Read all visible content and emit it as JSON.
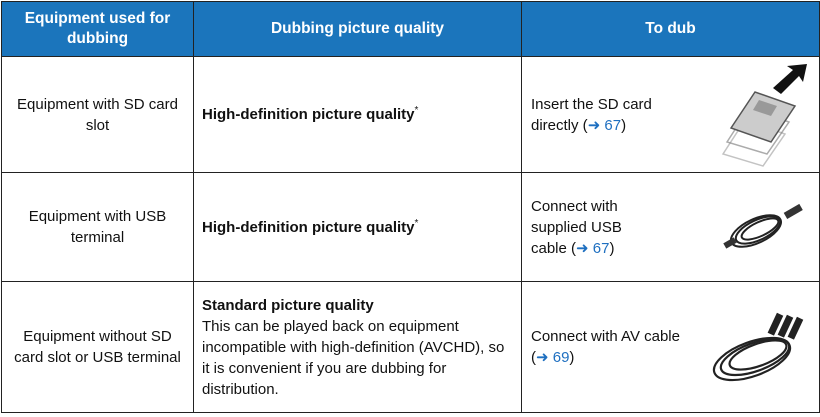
{
  "table": {
    "header": [
      "Equipment used for dubbing",
      "Dubbing picture quality",
      "To dub"
    ],
    "rows": [
      {
        "equipment": "Equipment with SD card slot",
        "quality": "High-definition picture quality",
        "quality_mark": "*",
        "action": "Insert the SD card directly (",
        "ref": "➜ 67",
        "action_end": ")"
      },
      {
        "equipment": "Equipment with USB terminal",
        "quality": "High-definition picture quality",
        "quality_mark": "*",
        "action": "Connect with supplied USB cable (",
        "ref": "➜ 67",
        "action_end": ")"
      },
      {
        "equipment": "Equipment without SD card slot or USB terminal",
        "quality": "Standard picture quality",
        "quality_note": "This can be played back on equipment incompatible with high-definition (AVCHD), so it is convenient if you are dubbing for distribution.",
        "action": "Connect with AV cable (",
        "ref": "➜ 69",
        "action_end": ")"
      }
    ]
  }
}
